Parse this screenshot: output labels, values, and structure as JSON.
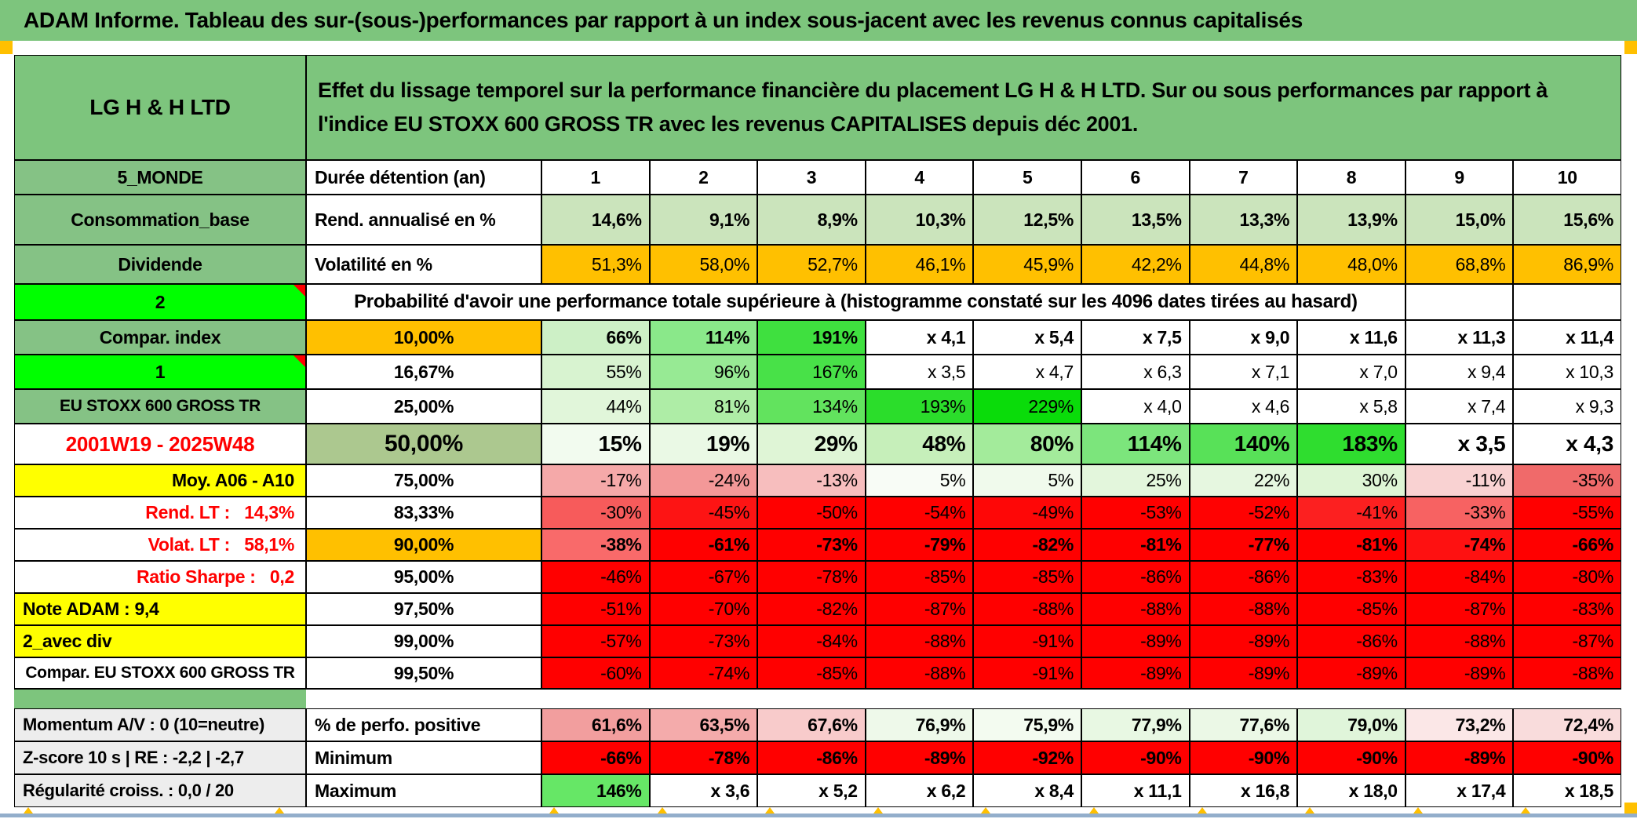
{
  "title_bar": "ADAM Informe. Tableau des sur-(sous-)performances par rapport à un index sous-jacent avec les revenus connus capitalisés",
  "header": {
    "fund": "LG H & H LTD",
    "description": "Effet du lissage temporel sur la performance financière du placement LG H & H LTD. Sur ou sous performances par rapport à l'indice EU STOXX 600 GROSS TR avec les revenus CAPITALISES depuis déc 2001."
  },
  "colors": {
    "page_green": "#7DC57D",
    "label_green": "#85C285",
    "bright_green": "#00FF00",
    "orange": "#FFC000",
    "yellow": "#FFFF00",
    "sage": "#ACC88F",
    "gray_label": "#EDEDED",
    "red_text": "#FF0000",
    "full_red": "#FF0000",
    "white": "#FFFFFF"
  },
  "table": {
    "rows": [
      {
        "id": "duree",
        "type": "cols",
        "bold": true,
        "label": {
          "text": "5_MONDE",
          "bg": "#85C285"
        },
        "colb": {
          "text": "Durée détention (an)",
          "align": "left",
          "bg": "#FFFFFF"
        },
        "cols": [
          "1",
          "2",
          "3",
          "4",
          "5",
          "6",
          "7",
          "8",
          "9",
          "10"
        ]
      },
      {
        "id": "rend",
        "type": "data",
        "bold": true,
        "label": {
          "text": "Consommation_base",
          "bg": "#85C285"
        },
        "colb": {
          "text": "Rend. annualisé en %",
          "align": "left",
          "bg": "#FFFFFF"
        },
        "cells": [
          {
            "t": "14,6%",
            "bg": "#CBE4BC"
          },
          {
            "t": "9,1%",
            "bg": "#CBE4BC"
          },
          {
            "t": "8,9%",
            "bg": "#CBE4BC"
          },
          {
            "t": "10,3%",
            "bg": "#CBE4BC"
          },
          {
            "t": "12,5%",
            "bg": "#CBE4BC"
          },
          {
            "t": "13,5%",
            "bg": "#CBE4BC"
          },
          {
            "t": "13,3%",
            "bg": "#CBE4BC"
          },
          {
            "t": "13,9%",
            "bg": "#CBE4BC"
          },
          {
            "t": "15,0%",
            "bg": "#CBE4BC"
          },
          {
            "t": "15,6%",
            "bg": "#CBE4BC"
          }
        ]
      },
      {
        "id": "volat",
        "type": "data",
        "bold": false,
        "label": {
          "text": "Dividende",
          "bg": "#85C285"
        },
        "colb": {
          "text": "Volatilité en %",
          "align": "left",
          "bg": "#FFFFFF"
        },
        "cells": [
          {
            "t": "51,3%",
            "bg": "#FFC000"
          },
          {
            "t": "58,0%",
            "bg": "#FFC000"
          },
          {
            "t": "52,7%",
            "bg": "#FFC000"
          },
          {
            "t": "46,1%",
            "bg": "#FFC000"
          },
          {
            "t": "45,9%",
            "bg": "#FFC000"
          },
          {
            "t": "42,2%",
            "bg": "#FFC000"
          },
          {
            "t": "44,8%",
            "bg": "#FFC000"
          },
          {
            "t": "48,0%",
            "bg": "#FFC000"
          },
          {
            "t": "68,8%",
            "bg": "#FFC000"
          },
          {
            "t": "86,9%",
            "bg": "#FFC000"
          }
        ]
      },
      {
        "id": "proba",
        "type": "proba",
        "label": {
          "text": "2",
          "bg": "#00FF00",
          "marker": true
        },
        "banner": "Probabilité d'avoir une performance totale supérieure à (histogramme constaté sur les 4096 dates tirées au hasard)"
      },
      {
        "id": "compar",
        "type": "data",
        "bold": true,
        "label": {
          "text": "Compar. index",
          "bg": "#85C285"
        },
        "colb": {
          "text": "10,00%",
          "bg": "#FFC000"
        },
        "cells": [
          {
            "t": "66%",
            "bg": "#CDF0C6"
          },
          {
            "t": "114%",
            "bg": "#8AE88A"
          },
          {
            "t": "191%",
            "bg": "#3FE03F"
          },
          {
            "t": "x 4,1",
            "bg": "#FFFFFF"
          },
          {
            "t": "x 5,4",
            "bg": "#FFFFFF"
          },
          {
            "t": "x 7,5",
            "bg": "#FFFFFF"
          },
          {
            "t": "x 9,0",
            "bg": "#FFFFFF"
          },
          {
            "t": "x 11,6",
            "bg": "#FFFFFF"
          },
          {
            "t": "x 11,3",
            "bg": "#FFFFFF"
          },
          {
            "t": "x 11,4",
            "bg": "#FFFFFF"
          }
        ]
      },
      {
        "id": "one",
        "type": "data",
        "bold": false,
        "label": {
          "text": "1",
          "bg": "#00FF00",
          "marker": true
        },
        "colb": {
          "text": "16,67%",
          "bg": "#FFFFFF"
        },
        "cells": [
          {
            "t": "55%",
            "bg": "#D8F3D0"
          },
          {
            "t": "96%",
            "bg": "#97EA94"
          },
          {
            "t": "167%",
            "bg": "#48E148"
          },
          {
            "t": "x 3,5",
            "bg": "#FFFFFF"
          },
          {
            "t": "x 4,7",
            "bg": "#FFFFFF"
          },
          {
            "t": "x 6,3",
            "bg": "#FFFFFF"
          },
          {
            "t": "x 7,1",
            "bg": "#FFFFFF"
          },
          {
            "t": "x 7,0",
            "bg": "#FFFFFF"
          },
          {
            "t": "x 9,4",
            "bg": "#FFFFFF"
          },
          {
            "t": "x 10,3",
            "bg": "#FFFFFF"
          }
        ]
      },
      {
        "id": "eustoxx",
        "type": "data",
        "bold": false,
        "labelsize": "sm",
        "label": {
          "text": "EU STOXX 600 GROSS TR",
          "bg": "#85C285"
        },
        "colb": {
          "text": "25,00%",
          "bg": "#FFFFFF"
        },
        "cells": [
          {
            "t": "44%",
            "bg": "#E1F6DA"
          },
          {
            "t": "81%",
            "bg": "#AEEDA6"
          },
          {
            "t": "134%",
            "bg": "#62E35E"
          },
          {
            "t": "193%",
            "bg": "#2BDD2B"
          },
          {
            "t": "229%",
            "bg": "#0ADC0A"
          },
          {
            "t": "x 4,0",
            "bg": "#FFFFFF"
          },
          {
            "t": "x 4,6",
            "bg": "#FFFFFF"
          },
          {
            "t": "x 5,8",
            "bg": "#FFFFFF"
          },
          {
            "t": "x 7,4",
            "bg": "#FFFFFF"
          },
          {
            "t": "x 9,3",
            "bg": "#FFFFFF"
          }
        ]
      },
      {
        "id": "fifty",
        "type": "data",
        "bold": true,
        "label": {
          "text": "2001W19 - 2025W48",
          "bg": "#FFFFFF",
          "color": "#FF0000"
        },
        "colb": {
          "text": "50,00%",
          "bg": "#ACC88F"
        },
        "cells": [
          {
            "t": "15%",
            "bg": "#F2FBEF"
          },
          {
            "t": "19%",
            "bg": "#EAF9E5"
          },
          {
            "t": "29%",
            "bg": "#DFF5D6"
          },
          {
            "t": "48%",
            "bg": "#C6EFBA"
          },
          {
            "t": "80%",
            "bg": "#A3EB9B"
          },
          {
            "t": "114%",
            "bg": "#7CE57C"
          },
          {
            "t": "140%",
            "bg": "#58E158"
          },
          {
            "t": "183%",
            "bg": "#2FDD2F"
          },
          {
            "t": "x 3,5",
            "bg": "#FFFFFF"
          },
          {
            "t": "x 4,3",
            "bg": "#FFFFFF"
          }
        ]
      },
      {
        "id": "p75",
        "type": "data",
        "bold": false,
        "labelalign": "right",
        "label": {
          "text": "Moy. A06 - A10",
          "bg": "#FFFF00"
        },
        "colb": {
          "text": "75,00%",
          "bg": "#FFFFFF"
        },
        "cells": [
          {
            "t": "-17%",
            "bg": "#F5A9A9"
          },
          {
            "t": "-24%",
            "bg": "#F39898"
          },
          {
            "t": "-13%",
            "bg": "#F7BEBE"
          },
          {
            "t": "5%",
            "bg": "#F8FCF6"
          },
          {
            "t": "5%",
            "bg": "#F0FAEC"
          },
          {
            "t": "25%",
            "bg": "#E3F6DC"
          },
          {
            "t": "22%",
            "bg": "#E6F7E0"
          },
          {
            "t": "30%",
            "bg": "#DEF5D5"
          },
          {
            "t": "-11%",
            "bg": "#F9D2D2"
          },
          {
            "t": "-35%",
            "bg": "#F06A6A"
          }
        ]
      },
      {
        "id": "p83",
        "type": "data",
        "bold": false,
        "labelalign": "right",
        "label": {
          "text": "Rend. LT :   14,3%",
          "bg": "#FFFFFF",
          "color": "#FF0000"
        },
        "colb": {
          "text": "83,33%",
          "bg": "#FFFFFF"
        },
        "cells": [
          {
            "t": "-30%",
            "bg": "#F75B5B"
          },
          {
            "t": "-45%",
            "bg": "#FD1414"
          },
          {
            "t": "-50%",
            "bg": "#FF0000"
          },
          {
            "t": "-54%",
            "bg": "#FF0000"
          },
          {
            "t": "-49%",
            "bg": "#FE0707"
          },
          {
            "t": "-53%",
            "bg": "#FF0000"
          },
          {
            "t": "-52%",
            "bg": "#FF0202"
          },
          {
            "t": "-41%",
            "bg": "#FC2020"
          },
          {
            "t": "-33%",
            "bg": "#F76262"
          },
          {
            "t": "-55%",
            "bg": "#FF0000"
          }
        ]
      },
      {
        "id": "p90",
        "type": "data",
        "bold": true,
        "labelalign": "right",
        "label": {
          "text": "Volat. LT :   58,1%",
          "bg": "#FFFFFF",
          "color": "#FF0000"
        },
        "colb": {
          "text": "90,00%",
          "bg": "#FFC000"
        },
        "cells": [
          {
            "t": "-38%",
            "bg": "#F96A6A"
          },
          {
            "t": "-61%",
            "bg": "#FF0000"
          },
          {
            "t": "-73%",
            "bg": "#FF0000"
          },
          {
            "t": "-79%",
            "bg": "#FF0000"
          },
          {
            "t": "-82%",
            "bg": "#FF0000"
          },
          {
            "t": "-81%",
            "bg": "#FF0000"
          },
          {
            "t": "-77%",
            "bg": "#FF0000"
          },
          {
            "t": "-81%",
            "bg": "#FF0000"
          },
          {
            "t": "-74%",
            "bg": "#FE1111"
          },
          {
            "t": "-66%",
            "bg": "#FF0000"
          }
        ]
      },
      {
        "id": "p95",
        "type": "data",
        "bold": false,
        "labelalign": "right",
        "label": {
          "text": "Ratio Sharpe :   0,2",
          "bg": "#FFFFFF",
          "color": "#FF0000"
        },
        "colb": {
          "text": "95,00%",
          "bg": "#FFFFFF"
        },
        "cells": [
          {
            "t": "-46%",
            "bg": "#FF0000"
          },
          {
            "t": "-67%",
            "bg": "#FF0000"
          },
          {
            "t": "-78%",
            "bg": "#FF0000"
          },
          {
            "t": "-85%",
            "bg": "#FF0000"
          },
          {
            "t": "-85%",
            "bg": "#FF0000"
          },
          {
            "t": "-86%",
            "bg": "#FF0000"
          },
          {
            "t": "-86%",
            "bg": "#FF0000"
          },
          {
            "t": "-83%",
            "bg": "#FF0000"
          },
          {
            "t": "-84%",
            "bg": "#FF0000"
          },
          {
            "t": "-80%",
            "bg": "#FF0000"
          }
        ]
      },
      {
        "id": "p975",
        "type": "data",
        "bold": false,
        "labelalign": "left",
        "label": {
          "text": "Note ADAM : 9,4",
          "bg": "#FFFF00"
        },
        "colb": {
          "text": "97,50%",
          "bg": "#FFFFFF"
        },
        "cells": [
          {
            "t": "-51%",
            "bg": "#FF0000"
          },
          {
            "t": "-70%",
            "bg": "#FF0000"
          },
          {
            "t": "-82%",
            "bg": "#FF0000"
          },
          {
            "t": "-87%",
            "bg": "#FF0000"
          },
          {
            "t": "-88%",
            "bg": "#FF0000"
          },
          {
            "t": "-88%",
            "bg": "#FF0000"
          },
          {
            "t": "-88%",
            "bg": "#FF0000"
          },
          {
            "t": "-85%",
            "bg": "#FF0000"
          },
          {
            "t": "-87%",
            "bg": "#FF0000"
          },
          {
            "t": "-83%",
            "bg": "#FF0000"
          }
        ]
      },
      {
        "id": "p99",
        "type": "data",
        "bold": false,
        "labelalign": "left",
        "label": {
          "text": "2_avec div",
          "bg": "#FFFF00"
        },
        "colb": {
          "text": "99,00%",
          "bg": "#FFFFFF"
        },
        "cells": [
          {
            "t": "-57%",
            "bg": "#FF0000"
          },
          {
            "t": "-73%",
            "bg": "#FF0000"
          },
          {
            "t": "-84%",
            "bg": "#FF0000"
          },
          {
            "t": "-88%",
            "bg": "#FF0000"
          },
          {
            "t": "-91%",
            "bg": "#FF0000"
          },
          {
            "t": "-89%",
            "bg": "#FF0000"
          },
          {
            "t": "-89%",
            "bg": "#FF0000"
          },
          {
            "t": "-86%",
            "bg": "#FF0000"
          },
          {
            "t": "-88%",
            "bg": "#FF0000"
          },
          {
            "t": "-87%",
            "bg": "#FF0000"
          }
        ]
      },
      {
        "id": "p995",
        "type": "data",
        "bold": false,
        "labelsize": "sm",
        "thickbot": true,
        "label": {
          "text": "Compar. EU STOXX 600 GROSS TR",
          "bg": "#FFFFFF"
        },
        "colb": {
          "text": "99,50%",
          "bg": "#FFFFFF"
        },
        "cells": [
          {
            "t": "-60%",
            "bg": "#FF0000"
          },
          {
            "t": "-74%",
            "bg": "#FF0000"
          },
          {
            "t": "-85%",
            "bg": "#FF0000"
          },
          {
            "t": "-88%",
            "bg": "#FF0000"
          },
          {
            "t": "-91%",
            "bg": "#FF0000"
          },
          {
            "t": "-89%",
            "bg": "#FF0000"
          },
          {
            "t": "-89%",
            "bg": "#FF0000"
          },
          {
            "t": "-89%",
            "bg": "#FF0000"
          },
          {
            "t": "-89%",
            "bg": "#FF0000"
          },
          {
            "t": "-88%",
            "bg": "#FF0000"
          }
        ]
      },
      {
        "id": "spacer",
        "type": "spacer"
      },
      {
        "id": "perfo",
        "type": "data",
        "bold": true,
        "labelalign": "left",
        "labelsize": "gsm",
        "label": {
          "text": "Momentum A/V : 0 (10=neutre)",
          "bg": "#EDEDED"
        },
        "colb": {
          "text": "% de perfo. positive",
          "align": "left",
          "bg": "#FFFFFF"
        },
        "cells": [
          {
            "t": "61,6%",
            "bg": "#F29E9E"
          },
          {
            "t": "63,5%",
            "bg": "#F4ABAB"
          },
          {
            "t": "67,6%",
            "bg": "#F8CBCB"
          },
          {
            "t": "76,9%",
            "bg": "#EEF9EA"
          },
          {
            "t": "75,9%",
            "bg": "#F3FBF0"
          },
          {
            "t": "77,9%",
            "bg": "#E8F8E3"
          },
          {
            "t": "77,6%",
            "bg": "#EBF8E6"
          },
          {
            "t": "79,0%",
            "bg": "#E0F5DA"
          },
          {
            "t": "73,2%",
            "bg": "#FBE7E7"
          },
          {
            "t": "72,4%",
            "bg": "#F9DCDC"
          }
        ]
      },
      {
        "id": "min",
        "type": "data",
        "bold": true,
        "labelalign": "left",
        "labelsize": "gsm",
        "label": {
          "text": "Z-score 10 s | RE : -2,2 | -2,7",
          "bg": "#EDEDED"
        },
        "colb": {
          "text": "Minimum",
          "align": "left",
          "bg": "#FFFFFF"
        },
        "cells": [
          {
            "t": "-66%",
            "bg": "#FF0000"
          },
          {
            "t": "-78%",
            "bg": "#FF0000"
          },
          {
            "t": "-86%",
            "bg": "#FF0000"
          },
          {
            "t": "-89%",
            "bg": "#FF0000"
          },
          {
            "t": "-92%",
            "bg": "#FF0000"
          },
          {
            "t": "-90%",
            "bg": "#FF0000"
          },
          {
            "t": "-90%",
            "bg": "#FF0000"
          },
          {
            "t": "-90%",
            "bg": "#FF0000"
          },
          {
            "t": "-89%",
            "bg": "#FF0000"
          },
          {
            "t": "-90%",
            "bg": "#FF0000"
          }
        ]
      },
      {
        "id": "max",
        "type": "data",
        "bold": true,
        "labelalign": "left",
        "labelsize": "gsm",
        "label": {
          "text": "Régularité croiss. : 0,0 / 20",
          "bg": "#EDEDED"
        },
        "colb": {
          "text": "Maximum",
          "align": "left",
          "bg": "#FFFFFF"
        },
        "cells": [
          {
            "t": "146%",
            "bg": "#66E766"
          },
          {
            "t": "x 3,6",
            "bg": "#FFFFFF"
          },
          {
            "t": "x 5,2",
            "bg": "#FFFFFF"
          },
          {
            "t": "x 6,2",
            "bg": "#FFFFFF"
          },
          {
            "t": "x 8,4",
            "bg": "#FFFFFF"
          },
          {
            "t": "x 11,1",
            "bg": "#FFFFFF"
          },
          {
            "t": "x 16,8",
            "bg": "#FFFFFF"
          },
          {
            "t": "x 18,0",
            "bg": "#FFFFFF"
          },
          {
            "t": "x 17,4",
            "bg": "#FFFFFF"
          },
          {
            "t": "x 18,5",
            "bg": "#FFFFFF"
          }
        ]
      }
    ]
  }
}
